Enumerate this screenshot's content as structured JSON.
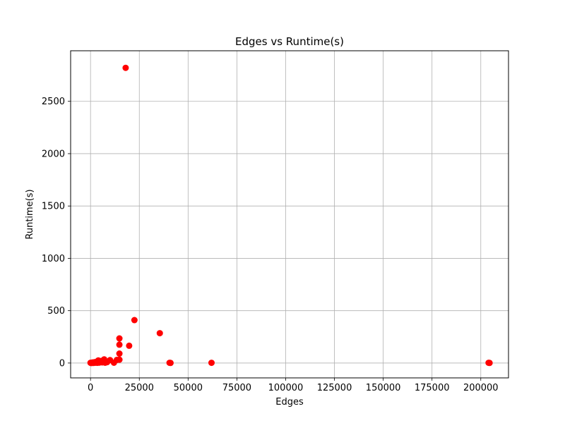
{
  "chart_data": {
    "type": "scatter",
    "title": "Edges vs Runtime(s)",
    "xlabel": "Edges",
    "ylabel": "Runtime(s)",
    "xlim": [
      -10200,
      214200
    ],
    "ylim": [
      -142,
      2983
    ],
    "grid": true,
    "marker_color": "#ff0000",
    "xticks": [
      0,
      25000,
      50000,
      75000,
      100000,
      125000,
      150000,
      175000,
      200000
    ],
    "yticks": [
      0,
      500,
      1000,
      1500,
      2000,
      2500
    ],
    "points": [
      {
        "x": 18000,
        "y": 2820
      },
      {
        "x": 22500,
        "y": 410
      },
      {
        "x": 35500,
        "y": 285
      },
      {
        "x": 14800,
        "y": 235
      },
      {
        "x": 14800,
        "y": 175
      },
      {
        "x": 19800,
        "y": 165
      },
      {
        "x": 14800,
        "y": 90
      },
      {
        "x": 14800,
        "y": 32
      },
      {
        "x": 13500,
        "y": 30
      },
      {
        "x": 7000,
        "y": 35
      },
      {
        "x": 10000,
        "y": 28
      },
      {
        "x": 4000,
        "y": 25
      },
      {
        "x": 5500,
        "y": 20
      },
      {
        "x": 3000,
        "y": 12
      },
      {
        "x": 2000,
        "y": 8
      },
      {
        "x": 1000,
        "y": 5
      },
      {
        "x": 0,
        "y": 2
      },
      {
        "x": 500,
        "y": 0
      },
      {
        "x": 1500,
        "y": 1
      },
      {
        "x": 2500,
        "y": 3
      },
      {
        "x": 3500,
        "y": 2
      },
      {
        "x": 4500,
        "y": 4
      },
      {
        "x": 6000,
        "y": 6
      },
      {
        "x": 7500,
        "y": 3
      },
      {
        "x": 8500,
        "y": 8
      },
      {
        "x": 12000,
        "y": 3
      },
      {
        "x": 40500,
        "y": 2
      },
      {
        "x": 41000,
        "y": 1
      },
      {
        "x": 62000,
        "y": 2
      },
      {
        "x": 204000,
        "y": 2
      },
      {
        "x": 204500,
        "y": 1
      }
    ]
  }
}
